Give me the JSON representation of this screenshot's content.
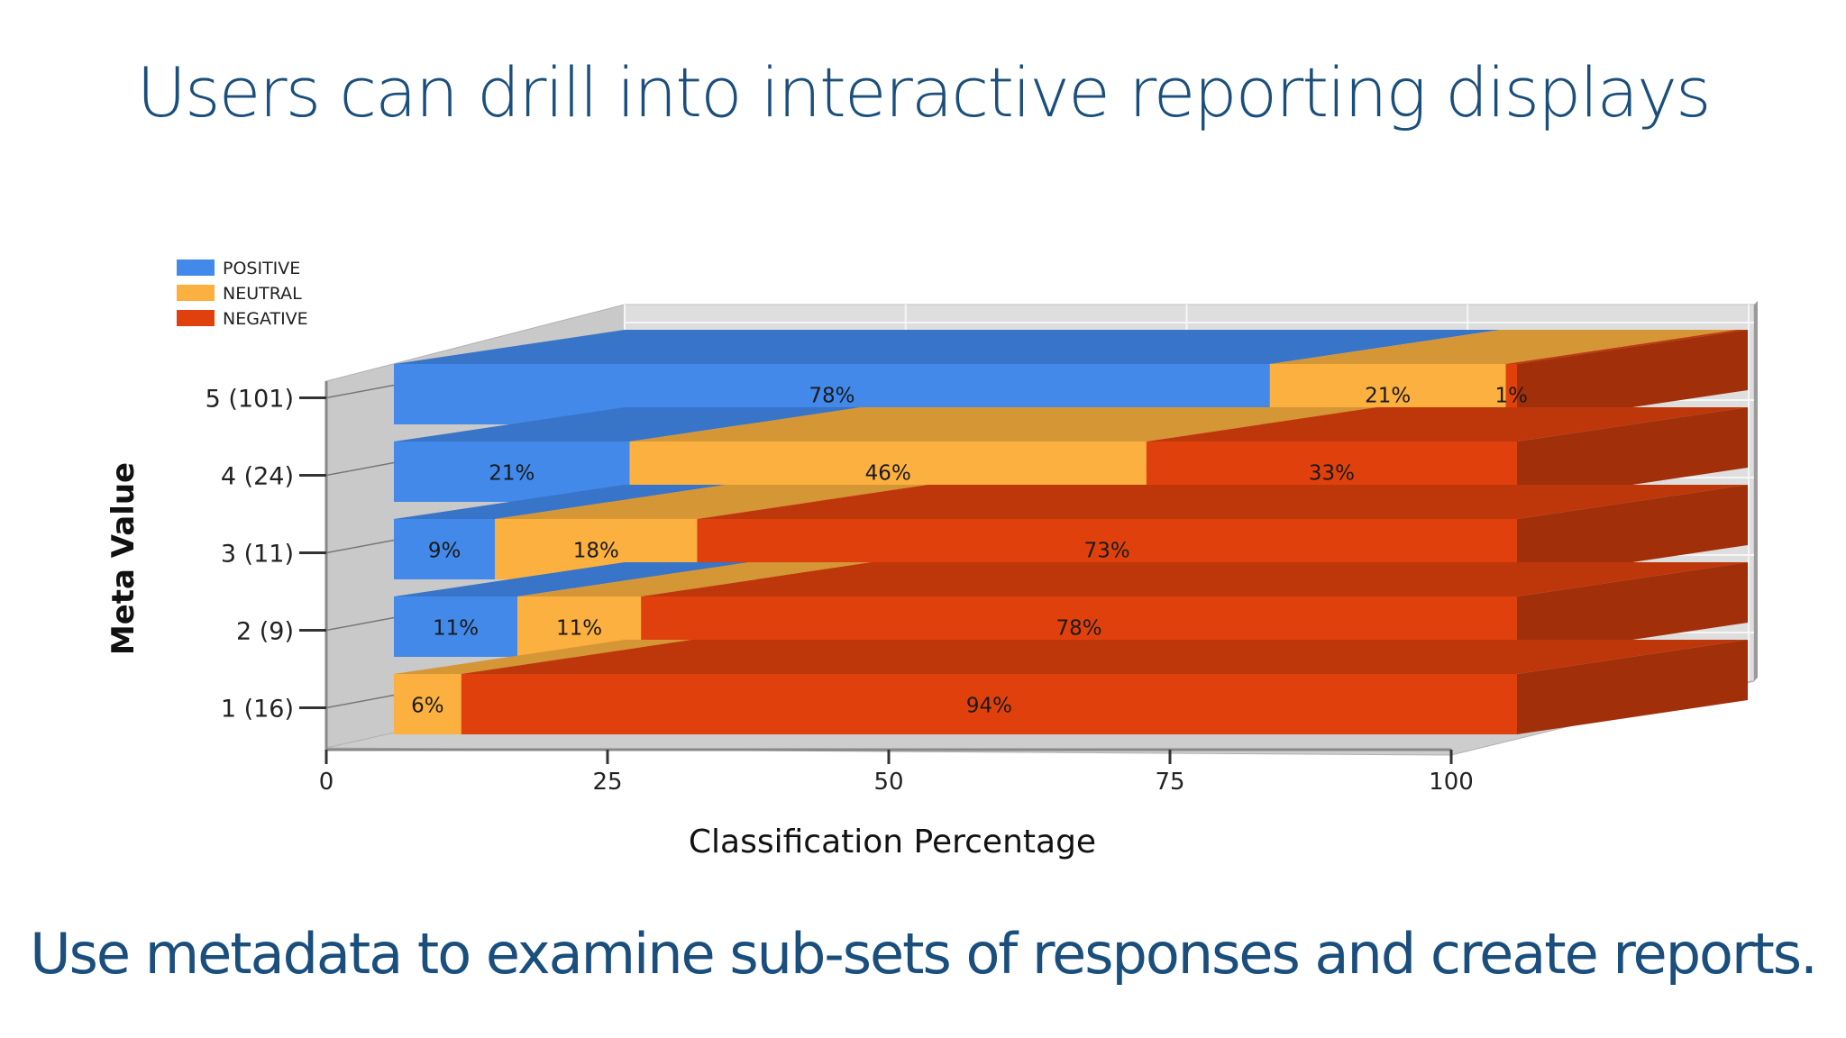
{
  "slide": {
    "title": "Users can drill into interactive reporting displays",
    "subtitle": "Use metadata to examine sub-sets of responses and create reports."
  },
  "colors": {
    "positive": "#4289ea",
    "neutral": "#fbb040",
    "negative": "#e0410c",
    "text_blue": "#1a4e7c",
    "wall": "#dcdcdc",
    "floor": "#c8c8c8"
  },
  "chart_data": {
    "type": "bar",
    "orientation": "horizontal",
    "stacked": true,
    "three_d": true,
    "title": "",
    "xlabel": "Classification Percentage",
    "ylabel": "Meta Value",
    "xlim": [
      0,
      100
    ],
    "x_ticks": [
      "0",
      "25",
      "50",
      "75",
      "100"
    ],
    "categories": [
      "5 (101)",
      "4 (24)",
      "3 (11)",
      "2 (9)",
      "1 (16)"
    ],
    "series": [
      {
        "name": "POSITIVE",
        "color": "#4289ea",
        "values": [
          78,
          21,
          9,
          11,
          0
        ],
        "labels": [
          "78%",
          "21%",
          "9%",
          "11%",
          ""
        ]
      },
      {
        "name": "NEUTRAL",
        "color": "#fbb040",
        "values": [
          21,
          46,
          18,
          11,
          6
        ],
        "labels": [
          "21%",
          "46%",
          "18%",
          "11%",
          "6%"
        ]
      },
      {
        "name": "NEGATIVE",
        "color": "#e0410c",
        "values": [
          1,
          33,
          73,
          78,
          94
        ],
        "labels": [
          "1%",
          "33%",
          "73%",
          "78%",
          "94%"
        ]
      }
    ],
    "legend_position": "top-left",
    "grid": true
  }
}
